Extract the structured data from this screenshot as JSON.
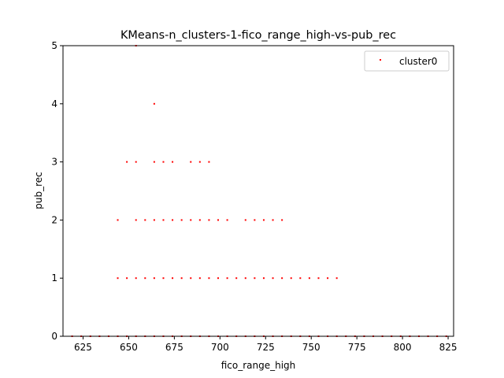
{
  "chart_data": {
    "type": "scatter",
    "title": "KMeans-n_clusters-1-fico_range_high-vs-pub_rec",
    "xlabel": "fico_range_high",
    "ylabel": "pub_rec",
    "xlim": [
      614,
      828
    ],
    "ylim": [
      0,
      5
    ],
    "xticks": [
      625,
      650,
      675,
      700,
      725,
      750,
      775,
      800,
      825
    ],
    "yticks": [
      0,
      1,
      2,
      3,
      4,
      5
    ],
    "grid": false,
    "legend_position": "top-right",
    "series": [
      {
        "name": "cluster0",
        "color": "#ff0000",
        "points": [
          [
            619,
            0
          ],
          [
            624,
            0
          ],
          [
            629,
            0
          ],
          [
            634,
            0
          ],
          [
            639,
            0
          ],
          [
            644,
            0
          ],
          [
            649,
            0
          ],
          [
            654,
            0
          ],
          [
            659,
            0
          ],
          [
            664,
            0
          ],
          [
            669,
            0
          ],
          [
            674,
            0
          ],
          [
            679,
            0
          ],
          [
            684,
            0
          ],
          [
            689,
            0
          ],
          [
            694,
            0
          ],
          [
            699,
            0
          ],
          [
            704,
            0
          ],
          [
            709,
            0
          ],
          [
            714,
            0
          ],
          [
            719,
            0
          ],
          [
            724,
            0
          ],
          [
            729,
            0
          ],
          [
            734,
            0
          ],
          [
            739,
            0
          ],
          [
            744,
            0
          ],
          [
            749,
            0
          ],
          [
            754,
            0
          ],
          [
            759,
            0
          ],
          [
            764,
            0
          ],
          [
            769,
            0
          ],
          [
            774,
            0
          ],
          [
            779,
            0
          ],
          [
            784,
            0
          ],
          [
            789,
            0
          ],
          [
            794,
            0
          ],
          [
            799,
            0
          ],
          [
            804,
            0
          ],
          [
            809,
            0
          ],
          [
            814,
            0
          ],
          [
            819,
            0
          ],
          [
            824,
            0
          ],
          [
            644,
            1
          ],
          [
            649,
            1
          ],
          [
            654,
            1
          ],
          [
            659,
            1
          ],
          [
            664,
            1
          ],
          [
            669,
            1
          ],
          [
            674,
            1
          ],
          [
            679,
            1
          ],
          [
            684,
            1
          ],
          [
            689,
            1
          ],
          [
            694,
            1
          ],
          [
            699,
            1
          ],
          [
            704,
            1
          ],
          [
            709,
            1
          ],
          [
            714,
            1
          ],
          [
            719,
            1
          ],
          [
            724,
            1
          ],
          [
            729,
            1
          ],
          [
            734,
            1
          ],
          [
            739,
            1
          ],
          [
            744,
            1
          ],
          [
            749,
            1
          ],
          [
            754,
            1
          ],
          [
            759,
            1
          ],
          [
            764,
            1
          ],
          [
            644,
            2
          ],
          [
            654,
            2
          ],
          [
            659,
            2
          ],
          [
            664,
            2
          ],
          [
            669,
            2
          ],
          [
            674,
            2
          ],
          [
            679,
            2
          ],
          [
            684,
            2
          ],
          [
            689,
            2
          ],
          [
            694,
            2
          ],
          [
            699,
            2
          ],
          [
            704,
            2
          ],
          [
            714,
            2
          ],
          [
            719,
            2
          ],
          [
            724,
            2
          ],
          [
            729,
            2
          ],
          [
            734,
            2
          ],
          [
            649,
            3
          ],
          [
            654,
            3
          ],
          [
            664,
            3
          ],
          [
            669,
            3
          ],
          [
            674,
            3
          ],
          [
            684,
            3
          ],
          [
            689,
            3
          ],
          [
            694,
            3
          ],
          [
            664,
            4
          ],
          [
            654,
            5
          ]
        ]
      }
    ]
  }
}
